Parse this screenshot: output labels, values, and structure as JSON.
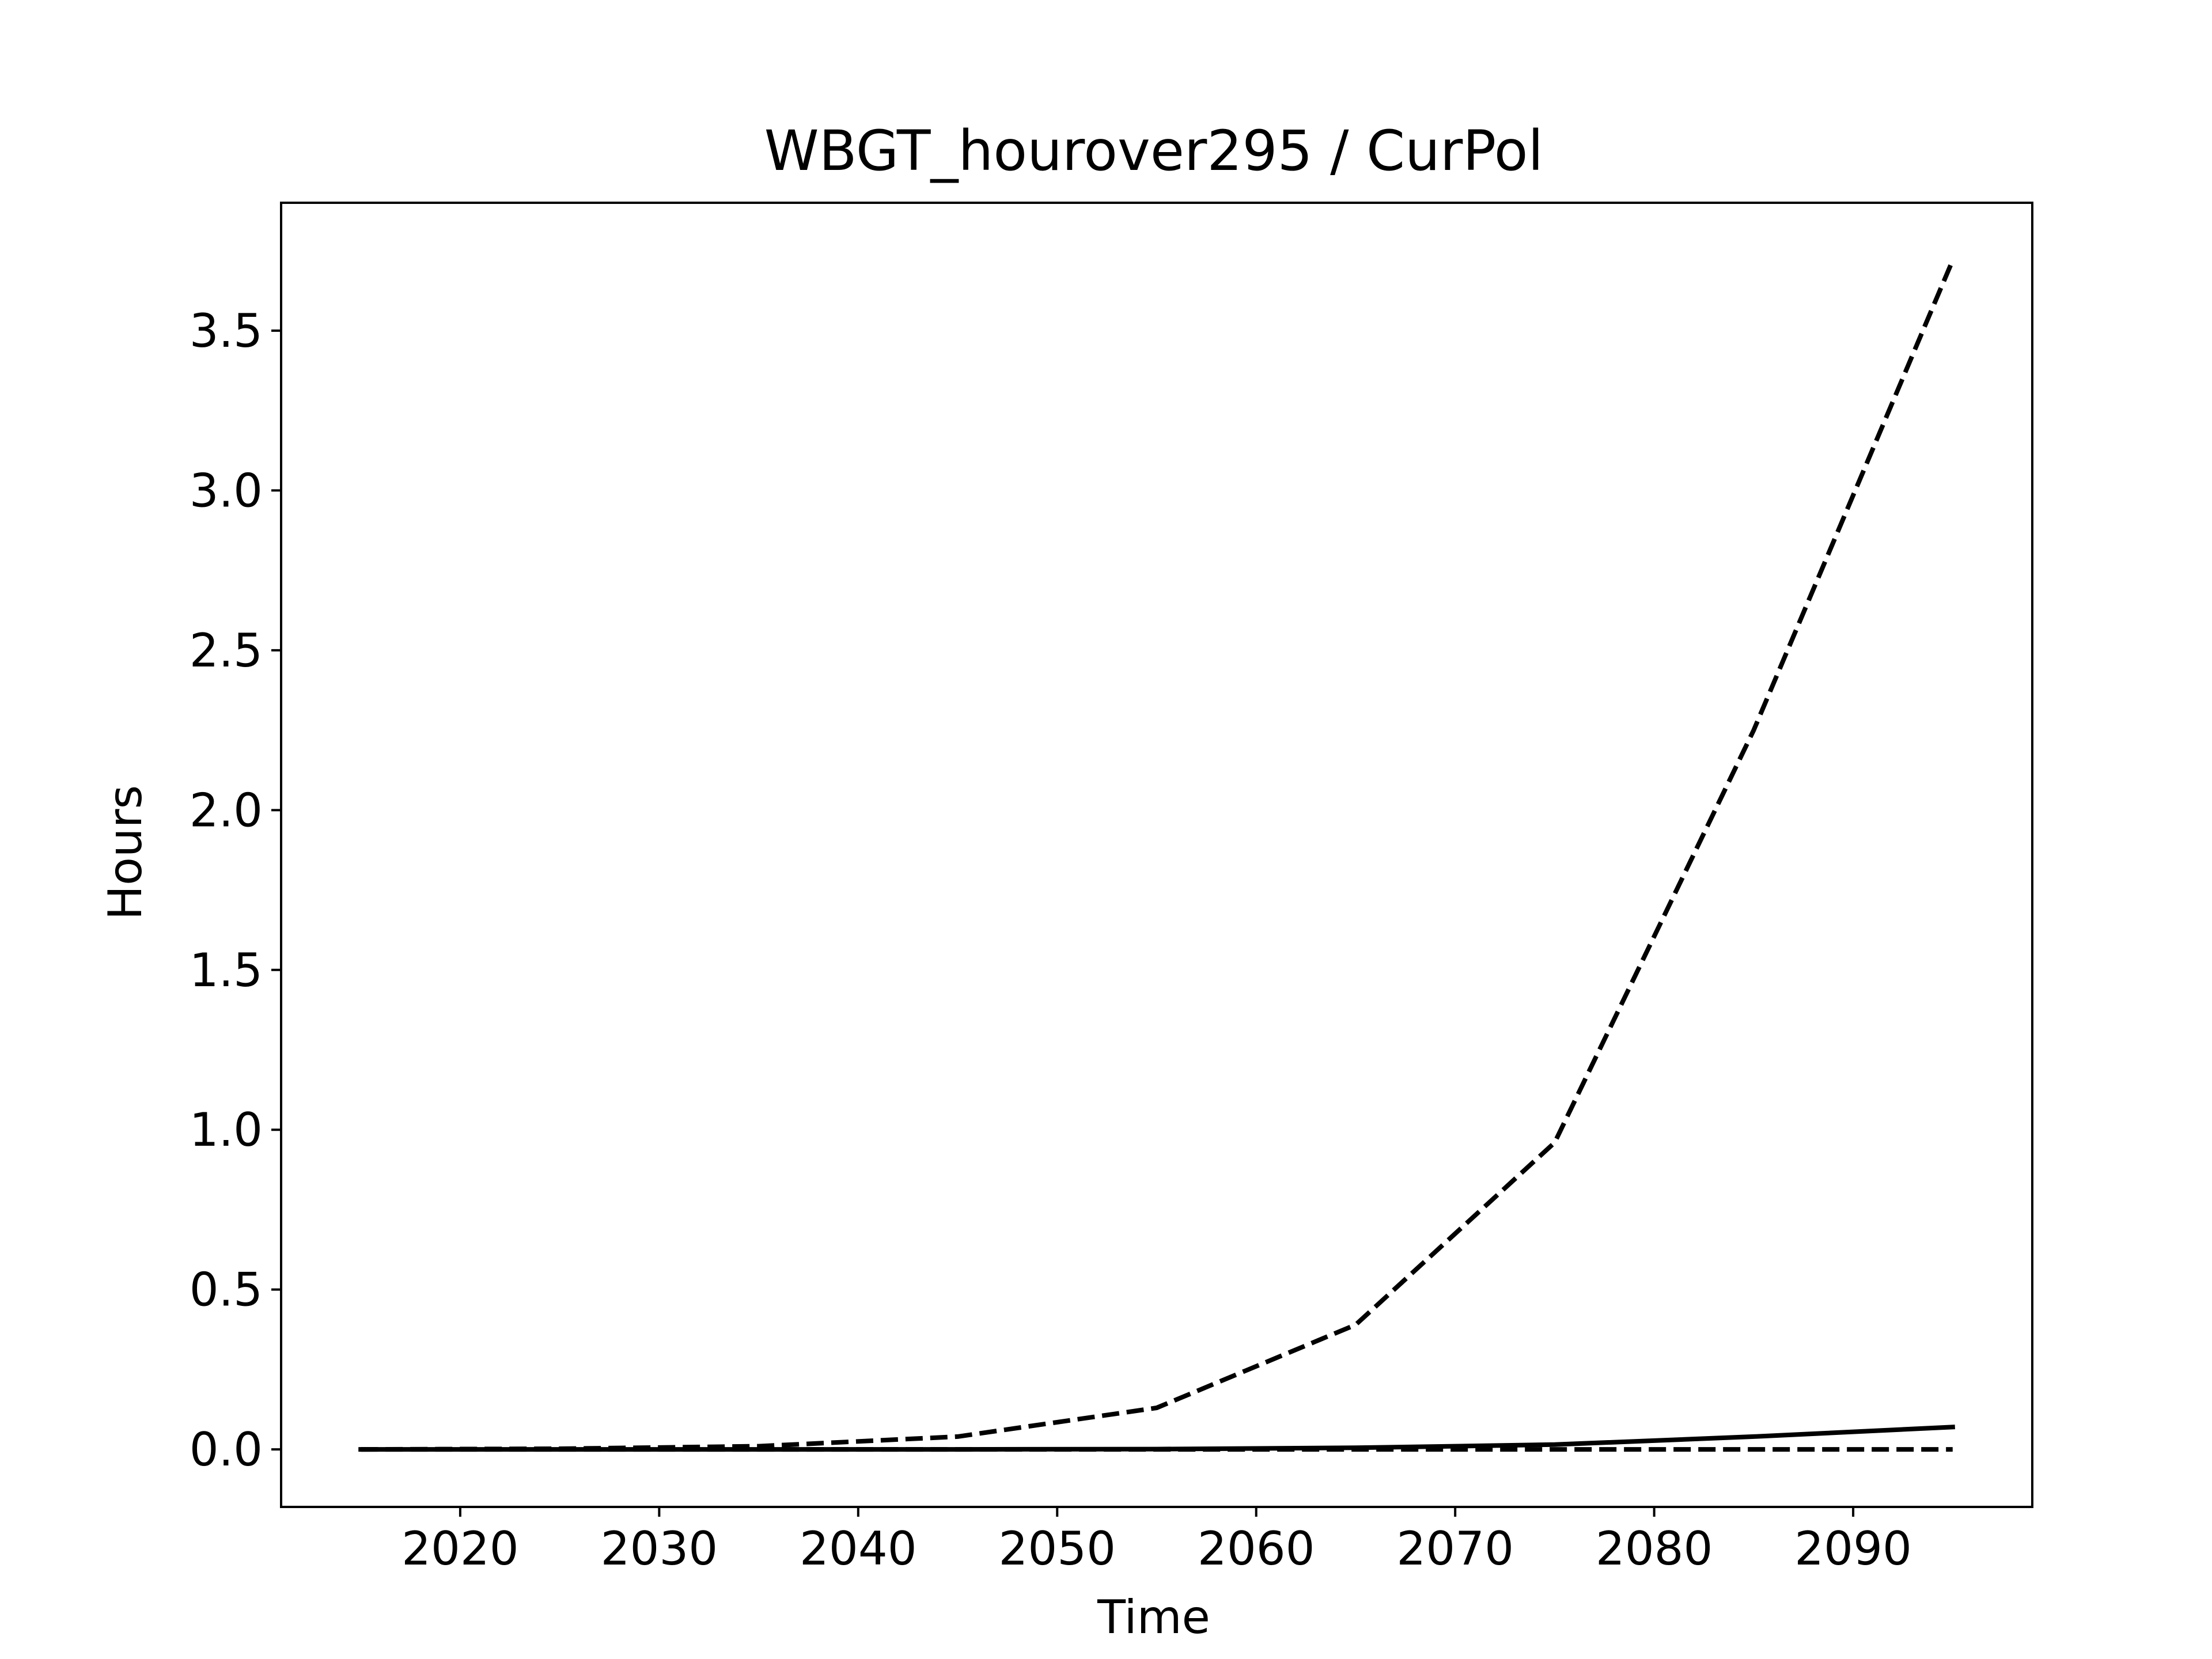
{
  "chart_data": {
    "type": "line",
    "title": "WBGT_hourover295 / CurPol",
    "xlabel": "Time",
    "ylabel": "Hours",
    "xlim": [
      2011,
      2099
    ],
    "ylim": [
      -0.18,
      3.9
    ],
    "x_ticks": [
      2020,
      2030,
      2040,
      2050,
      2060,
      2070,
      2080,
      2090
    ],
    "x_tick_labels": [
      "2020",
      "2030",
      "2040",
      "2050",
      "2060",
      "2070",
      "2080",
      "2090"
    ],
    "y_ticks": [
      0.0,
      0.5,
      1.0,
      1.5,
      2.0,
      2.5,
      3.0,
      3.5
    ],
    "y_tick_labels": [
      "0.0",
      "0.5",
      "1.0",
      "1.5",
      "2.0",
      "2.5",
      "3.0",
      "3.5"
    ],
    "grid": false,
    "legend": "none",
    "x": [
      2015,
      2025,
      2035,
      2045,
      2055,
      2065,
      2075,
      2085,
      2095
    ],
    "series": [
      {
        "style": "dashed",
        "color": "#000000",
        "values": [
          0.0,
          0.002,
          0.01,
          0.04,
          0.13,
          0.39,
          0.96,
          2.25,
          3.72
        ]
      },
      {
        "style": "solid",
        "color": "#000000",
        "values": [
          0.0,
          0.0,
          0.0,
          0.0,
          0.001,
          0.005,
          0.015,
          0.04,
          0.07
        ]
      },
      {
        "style": "dashed",
        "color": "#000000",
        "values": [
          0.0,
          0.0,
          0.0,
          0.0,
          0.0,
          0.0,
          0.0,
          0.0,
          0.0
        ]
      }
    ]
  }
}
